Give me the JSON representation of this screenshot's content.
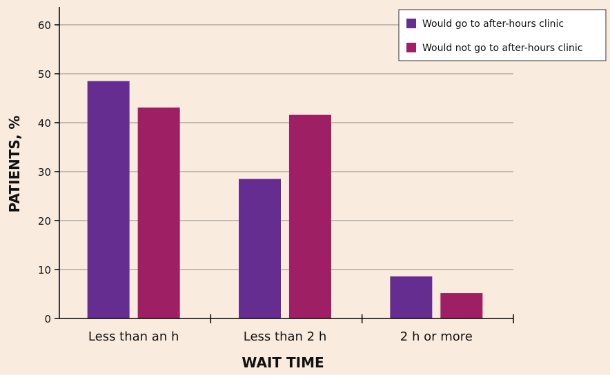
{
  "chart_data": {
    "type": "bar",
    "title": "",
    "xlabel": "WAIT TIME",
    "ylabel": "PATIENTS, %",
    "categories": [
      "Less than an h",
      "Less than 2 h",
      "2 h or more"
    ],
    "series": [
      {
        "name": "Would go to after-hours clinic",
        "color": "#662d91",
        "values": [
          48.5,
          28.5,
          8.6
        ]
      },
      {
        "name": "Would not go to after-hours clinic",
        "color": "#9e1f63",
        "values": [
          43.1,
          41.6,
          5.2
        ]
      }
    ],
    "ylim": [
      0,
      60
    ],
    "yticks": [
      0,
      10,
      20,
      30,
      40,
      50,
      60
    ],
    "grid": true,
    "legend_position": "top-right"
  }
}
